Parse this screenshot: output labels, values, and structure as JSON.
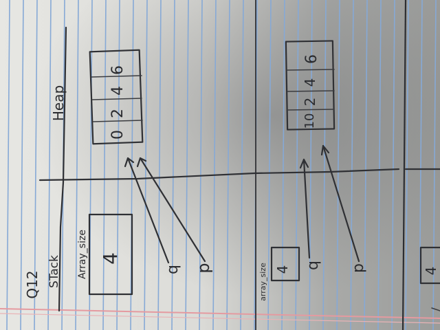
{
  "image": {
    "description_type": "photo-of-handwritten-notebook-sketch"
  },
  "labels": {
    "question": "Q12",
    "stack": "STack",
    "heap": "Heap",
    "array_size_1": "Array_size",
    "array_size_2": "array_size",
    "p": "p",
    "q": "q"
  },
  "diagram1": {
    "heap_cells": [
      "0",
      "2",
      "4",
      "6"
    ],
    "array_size_value": "4"
  },
  "diagram2": {
    "heap_cells": [
      "10",
      "2",
      "4",
      "6"
    ],
    "array_size_value": "4"
  },
  "diagram3": {
    "array_size_value": "4"
  },
  "colors": {
    "paper": "#e6e6e2",
    "shadow": "#8f9090",
    "rule_lines": "#86a9d6",
    "margin_line": "#e59aa0",
    "ink": "#2f3034"
  }
}
